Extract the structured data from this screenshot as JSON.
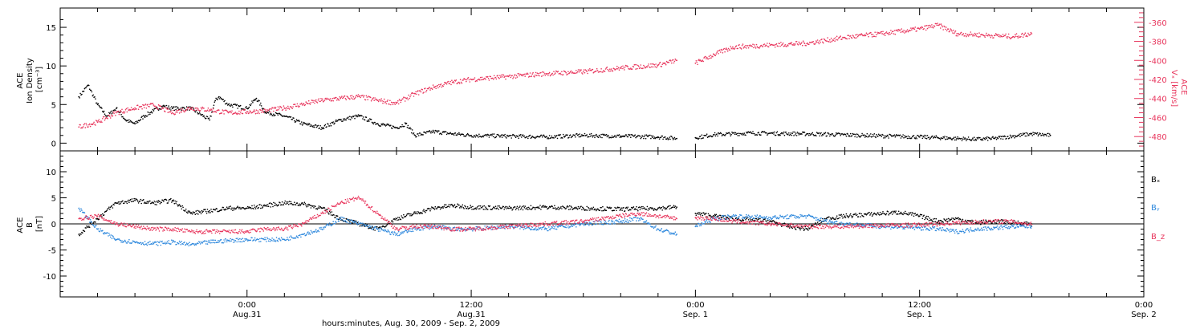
{
  "chart_data": [
    {
      "type": "scatter",
      "panel": "top",
      "left_axis": {
        "label_lines": [
          "ACE",
          "Ion Density",
          "[cm⁻³]"
        ],
        "ylim": [
          -1,
          17.5
        ],
        "ticks": [
          0,
          5,
          10,
          15
        ],
        "tick_labels": [
          "0",
          "5",
          "10",
          "15"
        ],
        "color": "#000000"
      },
      "right_axis": {
        "label_lines": [
          "ACE",
          "Vₓ [km/s]"
        ],
        "ylim": [
          -495,
          -345
        ],
        "ticks": [
          -360,
          -380,
          -400,
          -420,
          -440,
          -460,
          -480
        ],
        "tick_labels": [
          "-360",
          "-380",
          "-400",
          "-420",
          "-440",
          "-460",
          "-480"
        ],
        "color": "#e8365d"
      },
      "series": [
        {
          "color": "#000000",
          "axis": "left",
          "points": [
            [
              -9,
              6
            ],
            [
              -8.5,
              7.5
            ],
            [
              -8,
              5
            ],
            [
              -7.5,
              3.5
            ],
            [
              -7,
              4.5
            ],
            [
              -6.5,
              3
            ],
            [
              -6,
              2.5
            ],
            [
              -5.5,
              3.5
            ],
            [
              -5,
              4.2
            ],
            [
              -4.5,
              4.8
            ],
            [
              -4,
              4.5
            ],
            [
              -3,
              4.5
            ],
            [
              -2,
              3
            ],
            [
              -1.7,
              5.5
            ],
            [
              -1.5,
              6
            ],
            [
              -1,
              5
            ],
            [
              0,
              4.5
            ],
            [
              0.5,
              5.8
            ],
            [
              1,
              4
            ],
            [
              2,
              3.5
            ],
            [
              3,
              2.5
            ],
            [
              4,
              2
            ],
            [
              5,
              3
            ],
            [
              6,
              3.5
            ],
            [
              6.5,
              3
            ],
            [
              7,
              2.5
            ],
            [
              8,
              2
            ],
            [
              8.5,
              2.5
            ],
            [
              9,
              1
            ],
            [
              10,
              1.5
            ],
            [
              11,
              1.2
            ],
            [
              12,
              1
            ],
            [
              14,
              0.9
            ],
            [
              16,
              0.8
            ],
            [
              18,
              1
            ],
            [
              20,
              0.9
            ],
            [
              22,
              0.8
            ],
            [
              23,
              0.6
            ],
            [
              24,
              0.7
            ],
            [
              25,
              1.1
            ],
            [
              27,
              1.3
            ],
            [
              30,
              1.2
            ],
            [
              33,
              1
            ],
            [
              36,
              0.8
            ],
            [
              38,
              0.6
            ],
            [
              39,
              0.5
            ],
            [
              40,
              0.6
            ],
            [
              41,
              0.9
            ],
            [
              42,
              1.2
            ],
            [
              43,
              1
            ]
          ]
        },
        {
          "color": "#e8365d",
          "axis": "right",
          "points": [
            [
              -9,
              -470
            ],
            [
              -8,
              -465
            ],
            [
              -7,
              -455
            ],
            [
              -6,
              -450
            ],
            [
              -5,
              -447
            ],
            [
              -4,
              -455
            ],
            [
              -3,
              -450
            ],
            [
              -2,
              -452
            ],
            [
              -1,
              -455
            ],
            [
              0,
              -454
            ],
            [
              1,
              -453
            ],
            [
              2,
              -450
            ],
            [
              3,
              -446
            ],
            [
              4,
              -442
            ],
            [
              5,
              -440
            ],
            [
              6,
              -438
            ],
            [
              7,
              -442
            ],
            [
              8,
              -445
            ],
            [
              9,
              -435
            ],
            [
              10,
              -428
            ],
            [
              11,
              -423
            ],
            [
              12,
              -420
            ],
            [
              14,
              -417
            ],
            [
              16,
              -414
            ],
            [
              18,
              -412
            ],
            [
              20,
              -408
            ],
            [
              22,
              -405
            ],
            [
              23,
              -400
            ],
            [
              24,
              -403
            ],
            [
              25,
              -394
            ],
            [
              26,
              -386
            ],
            [
              28,
              -384
            ],
            [
              30,
              -382
            ],
            [
              32,
              -376
            ],
            [
              34,
              -372
            ],
            [
              36,
              -367
            ],
            [
              37,
              -363
            ],
            [
              38,
              -372
            ],
            [
              39,
              -373
            ],
            [
              40,
              -374
            ],
            [
              41,
              -375
            ],
            [
              42,
              -372
            ]
          ]
        }
      ]
    },
    {
      "type": "scatter",
      "panel": "bottom",
      "left_axis": {
        "label_lines": [
          "ACE",
          "B",
          "[nT]"
        ],
        "ylim": [
          -14,
          14
        ],
        "ticks": [
          -10,
          -5,
          0,
          5,
          10
        ],
        "tick_labels": [
          "-10",
          "-5",
          "0",
          "5",
          "10"
        ],
        "zero_line": true
      },
      "legend_position": "right",
      "series": [
        {
          "name": "Bₓ",
          "color": "#000000",
          "points": [
            [
              -9,
              -2
            ],
            [
              -8,
              1
            ],
            [
              -7,
              4
            ],
            [
              -6,
              4.5
            ],
            [
              -5,
              4
            ],
            [
              -4,
              4.5
            ],
            [
              -3,
              2
            ],
            [
              -2,
              2.5
            ],
            [
              -1,
              3
            ],
            [
              0,
              3
            ],
            [
              1,
              3.5
            ],
            [
              2,
              4
            ],
            [
              3,
              3.8
            ],
            [
              4,
              3
            ],
            [
              5,
              1
            ],
            [
              6,
              0
            ],
            [
              7,
              -1
            ],
            [
              8,
              1
            ],
            [
              9,
              2
            ],
            [
              10,
              3
            ],
            [
              11,
              3.5
            ],
            [
              12,
              3.2
            ],
            [
              14,
              3
            ],
            [
              16,
              3.2
            ],
            [
              18,
              3
            ],
            [
              20,
              2.8
            ],
            [
              22,
              3
            ],
            [
              23,
              3.2
            ],
            [
              24,
              2
            ],
            [
              25,
              1.5
            ],
            [
              26,
              1
            ],
            [
              28,
              0.5
            ],
            [
              29,
              -0.5
            ],
            [
              30,
              -1
            ],
            [
              31,
              1
            ],
            [
              32,
              1.5
            ],
            [
              34,
              2
            ],
            [
              35,
              2.2
            ],
            [
              36,
              1.5
            ],
            [
              37,
              0.5
            ],
            [
              38,
              1
            ],
            [
              39,
              0.2
            ],
            [
              40,
              0.5
            ],
            [
              41,
              0.3
            ],
            [
              42,
              0
            ]
          ]
        },
        {
          "name": "Bᵧ",
          "color": "#2f89dd",
          "points": [
            [
              -9,
              3
            ],
            [
              -8,
              -1
            ],
            [
              -7,
              -3
            ],
            [
              -6,
              -3.5
            ],
            [
              -5,
              -3.8
            ],
            [
              -4,
              -3.5
            ],
            [
              -3,
              -4
            ],
            [
              -2,
              -3.5
            ],
            [
              -1,
              -3.2
            ],
            [
              0,
              -3
            ],
            [
              1,
              -3
            ],
            [
              2,
              -3
            ],
            [
              3,
              -2
            ],
            [
              4,
              -1
            ],
            [
              5,
              1
            ],
            [
              6,
              0
            ],
            [
              7,
              -1
            ],
            [
              8,
              -2
            ],
            [
              9,
              -1
            ],
            [
              10,
              -0.5
            ],
            [
              11,
              -1
            ],
            [
              12,
              -1
            ],
            [
              14,
              -0.5
            ],
            [
              16,
              -1
            ],
            [
              18,
              0
            ],
            [
              20,
              0.5
            ],
            [
              21,
              1
            ],
            [
              22,
              -1
            ],
            [
              23,
              -2
            ],
            [
              24,
              -0.5
            ],
            [
              25,
              1
            ],
            [
              26,
              1.5
            ],
            [
              28,
              1.2
            ],
            [
              30,
              1.5
            ],
            [
              31,
              0.5
            ],
            [
              32,
              0
            ],
            [
              34,
              -0.5
            ],
            [
              36,
              -0.8
            ],
            [
              37,
              -1
            ],
            [
              38,
              -1.5
            ],
            [
              39,
              -1
            ],
            [
              40,
              -0.8
            ],
            [
              41,
              -0.5
            ],
            [
              42,
              -0.5
            ]
          ]
        },
        {
          "name": "B_z",
          "color": "#e8365d",
          "points": [
            [
              -9,
              1
            ],
            [
              -8,
              1.5
            ],
            [
              -7,
              0
            ],
            [
              -6,
              -0.5
            ],
            [
              -5,
              -1
            ],
            [
              -4,
              -1
            ],
            [
              -3,
              -1.5
            ],
            [
              -2,
              -1.5
            ],
            [
              -1,
              -1.5
            ],
            [
              0,
              -1.5
            ],
            [
              1,
              -1
            ],
            [
              2,
              -1
            ],
            [
              3,
              0
            ],
            [
              4,
              2
            ],
            [
              5,
              4
            ],
            [
              6,
              5
            ],
            [
              7,
              2
            ],
            [
              8,
              -1
            ],
            [
              9,
              -0.5
            ],
            [
              10,
              -0.5
            ],
            [
              11,
              -1
            ],
            [
              12,
              -1
            ],
            [
              14,
              -0.5
            ],
            [
              16,
              0
            ],
            [
              18,
              0.5
            ],
            [
              20,
              1.5
            ],
            [
              21,
              2
            ],
            [
              22,
              1.5
            ],
            [
              23,
              1
            ],
            [
              24,
              1.2
            ],
            [
              25,
              1
            ],
            [
              26,
              0.5
            ],
            [
              28,
              0
            ],
            [
              30,
              -0.5
            ],
            [
              32,
              -0.5
            ],
            [
              34,
              -0.3
            ],
            [
              36,
              -0.2
            ],
            [
              38,
              0.2
            ],
            [
              40,
              0.5
            ],
            [
              41,
              0.4
            ],
            [
              42,
              -0.1
            ]
          ]
        }
      ]
    }
  ],
  "time_axis": {
    "xlim_hours": [
      -10,
      48
    ],
    "major_ticks_hours": [
      0,
      12,
      24,
      36,
      48
    ],
    "tick_time_labels": [
      "0:00",
      "12:00",
      "0:00",
      "12:00",
      "0:00"
    ],
    "tick_date_labels": [
      "Aug.31",
      "Aug.31",
      "Sep. 1",
      "Sep. 1",
      "Sep. 2"
    ],
    "minor_step_hours": 2,
    "xlabel": "hours:minutes, Aug. 30, 2009 - Sep.  2, 2009",
    "data_gap_hours": [
      23.0,
      24.0
    ]
  }
}
